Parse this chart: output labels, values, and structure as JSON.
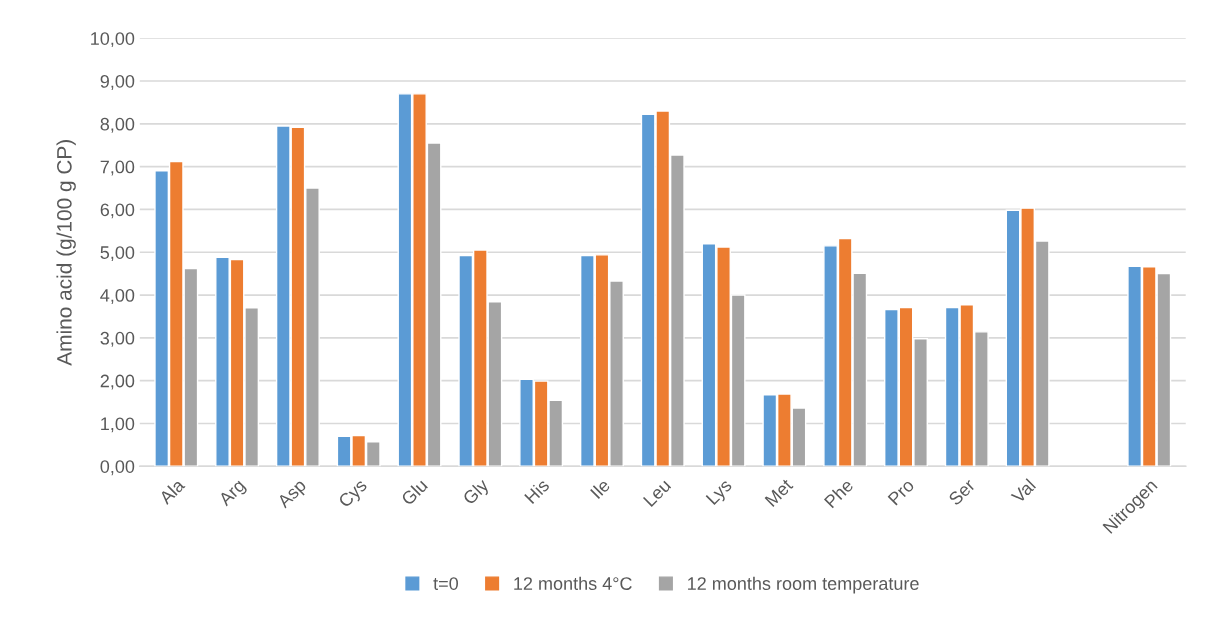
{
  "chart_data": {
    "type": "bar",
    "ylabel": "Amino acid (g/100 g CP)",
    "categories": [
      "Ala",
      "Arg",
      "Asp",
      "Cys",
      "Glu",
      "Gly",
      "His",
      "Ile",
      "Leu",
      "Lys",
      "Met",
      "Phe",
      "Pro",
      "Ser",
      "Val",
      null,
      "Nitrogen"
    ],
    "series": [
      {
        "name": "t=0",
        "color": "#5b9bd5",
        "values": [
          6.9,
          4.88,
          7.95,
          0.7,
          8.7,
          4.92,
          2.03,
          4.92,
          8.22,
          5.2,
          1.67,
          5.15,
          3.66,
          3.71,
          5.98,
          null,
          4.67
        ]
      },
      {
        "name": "12 months 4°C",
        "color": "#ed7d31",
        "values": [
          7.12,
          4.83,
          7.92,
          0.72,
          8.7,
          5.05,
          1.99,
          4.94,
          8.3,
          5.12,
          1.69,
          5.32,
          3.71,
          3.77,
          6.03,
          null,
          4.66
        ]
      },
      {
        "name": "12 months room temperature",
        "color": "#a5a5a5",
        "values": [
          4.62,
          3.7,
          6.5,
          0.57,
          7.55,
          3.84,
          1.54,
          4.33,
          7.27,
          4.0,
          1.36,
          4.51,
          2.98,
          3.14,
          5.26,
          null,
          4.5
        ]
      }
    ],
    "ylim": [
      0,
      10
    ],
    "yticks": [
      {
        "value": 0,
        "label": "0,00"
      },
      {
        "value": 1,
        "label": "1,00"
      },
      {
        "value": 2,
        "label": "2,00"
      },
      {
        "value": 3,
        "label": "3,00"
      },
      {
        "value": 4,
        "label": "4,00"
      },
      {
        "value": 5,
        "label": "5,00"
      },
      {
        "value": 6,
        "label": "6,00"
      },
      {
        "value": 7,
        "label": "7,00"
      },
      {
        "value": 8,
        "label": "8,00"
      },
      {
        "value": 9,
        "label": "9,00"
      },
      {
        "value": 10,
        "label": "10,00"
      }
    ],
    "grid": "y",
    "legend": "bottom"
  }
}
